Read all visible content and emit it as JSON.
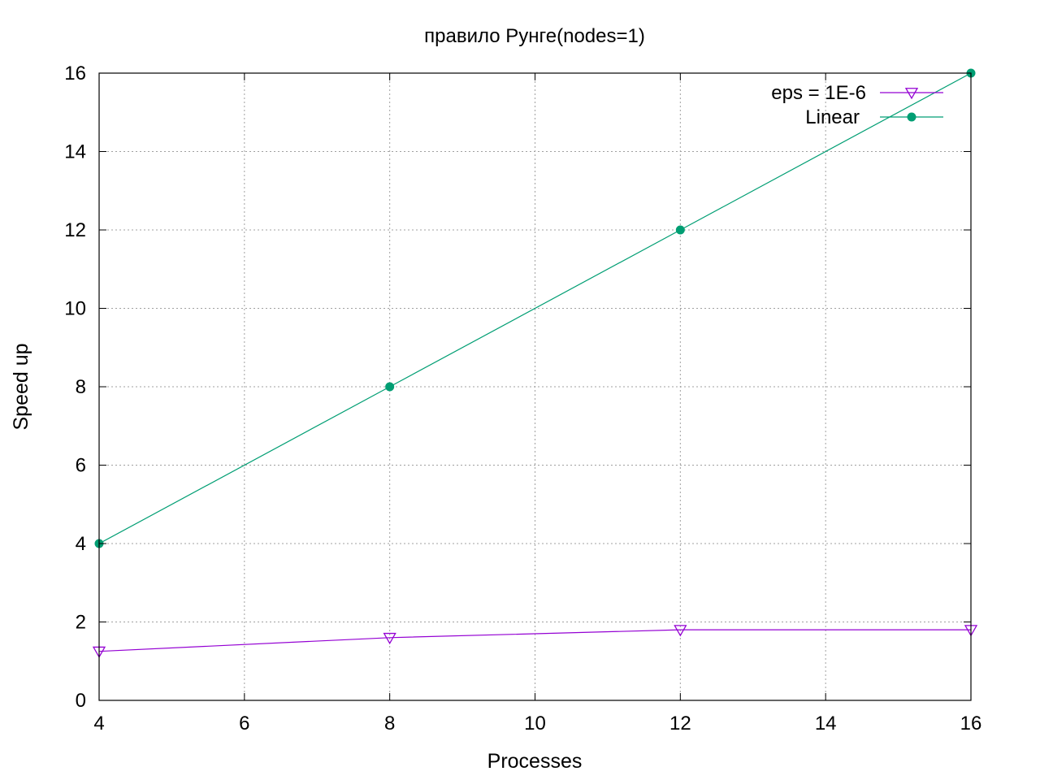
{
  "chart_data": {
    "type": "line",
    "title": "правило Рунге(nodes=1)",
    "xlabel": "Processes",
    "ylabel": "Speed up",
    "xlim": [
      4,
      16
    ],
    "ylim": [
      0,
      16
    ],
    "xticks": [
      4,
      6,
      8,
      10,
      12,
      14,
      16
    ],
    "yticks": [
      0,
      2,
      4,
      6,
      8,
      10,
      12,
      14,
      16
    ],
    "xtick_labels": [
      "4",
      "6",
      "8",
      "10",
      "12",
      "14",
      "16"
    ],
    "ytick_labels": [
      "0",
      "2",
      "4",
      "6",
      "8",
      "10",
      "12",
      "14",
      "16"
    ],
    "grid": true,
    "legend_position": "top-right",
    "x": [
      4,
      8,
      12,
      16
    ],
    "series": [
      {
        "name": "eps = 1E-6",
        "values": [
          1.25,
          1.6,
          1.8,
          1.8
        ],
        "color": "#9400d3",
        "marker": "triangle-down-open"
      },
      {
        "name": "Linear",
        "values": [
          4,
          8,
          12,
          16
        ],
        "color": "#009e73",
        "marker": "circle-filled"
      }
    ]
  }
}
